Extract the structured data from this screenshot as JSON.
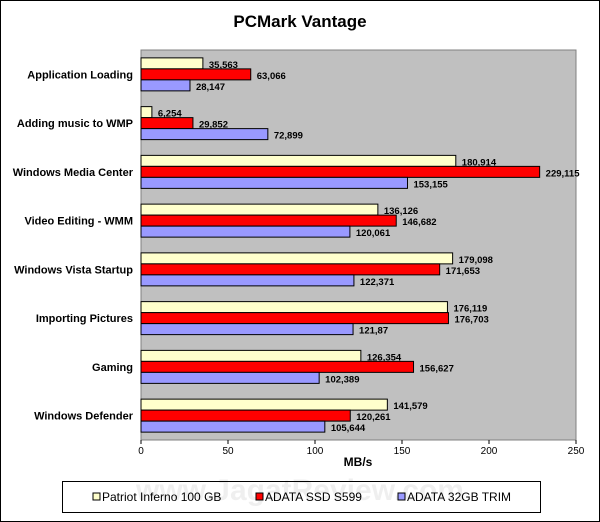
{
  "chart_data": {
    "type": "bar",
    "orientation": "horizontal",
    "title": "PCMark Vantage",
    "xlabel": "MB/s",
    "ylabel": "",
    "xlim": [
      0,
      250
    ],
    "xticks": [
      0,
      50,
      100,
      150,
      200,
      250
    ],
    "grid": false,
    "legend_position": "bottom",
    "categories": [
      "Application Loading",
      "Adding music to WMP",
      "Windows Media Center",
      "Video Editing - WMM",
      "Windows Vista Startup",
      "Importing Pictures",
      "Gaming",
      "Windows Defender"
    ],
    "series": [
      {
        "name": "Patriot Inferno 100 GB",
        "color": "#FFFFCC",
        "values": [
          35.563,
          6.254,
          180.914,
          136.126,
          179.098,
          176.119,
          126.354,
          141.579
        ],
        "labels": [
          "35,563",
          "6,254",
          "180,914",
          "136,126",
          "179,098",
          "176,119",
          "126,354",
          "141,579"
        ]
      },
      {
        "name": "ADATA SSD S599",
        "color": "#FF0000",
        "values": [
          63.066,
          29.852,
          229.115,
          146.682,
          171.653,
          176.703,
          156.627,
          120.261
        ],
        "labels": [
          "63,066",
          "29,852",
          "229,115",
          "146,682",
          "171,653",
          "176,703",
          "156,627",
          "120,261"
        ]
      },
      {
        "name": "ADATA 32GB TRIM",
        "color": "#9999FF",
        "values": [
          28.147,
          72.899,
          153.155,
          120.061,
          122.371,
          121.87,
          102.389,
          105.644
        ],
        "labels": [
          "28,147",
          "72,899",
          "153,155",
          "120,061",
          "122,371",
          "121,87",
          "102,389",
          "105,644"
        ]
      }
    ],
    "plot_background": "#C0C0C0"
  },
  "watermark": "www.JagatReview.com"
}
